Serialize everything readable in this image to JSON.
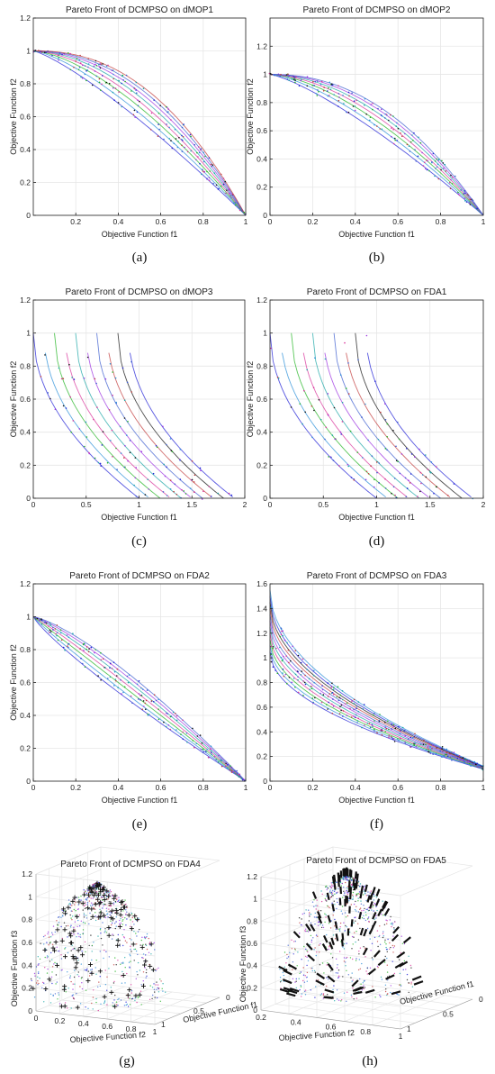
{
  "chart_data": [
    {
      "id": "a",
      "type": "scatter",
      "title": "Pareto Front of DCMPSO on dMOP1",
      "xlabel": "Objective Function f1",
      "ylabel": "Objective Function f2",
      "caption": "(a)",
      "xlim": [
        0,
        1
      ],
      "ylim": [
        0,
        1.2
      ],
      "xticks": [
        0.2,
        0.4,
        0.6,
        0.8,
        1
      ],
      "yticks": [
        0,
        0.2,
        0.4,
        0.6,
        0.8,
        1,
        1.2
      ],
      "x_tick_labels": [
        "0.2",
        "0.4",
        "0.6",
        "0.8",
        "1"
      ],
      "y_tick_labels": [
        "0",
        "0.2",
        "0.4",
        "0.6",
        "0.8",
        "1",
        "1.2"
      ],
      "front": "concave",
      "exponents": [
        1.25,
        1.4,
        1.55,
        1.7,
        1.85,
        2.0,
        2.15,
        2.3
      ],
      "grid": true,
      "legend": "none"
    },
    {
      "id": "b",
      "type": "scatter",
      "title": "Pareto Front of DCMPSO on dMOP2",
      "xlabel": "Objective Function f1",
      "ylabel": "Objective Function f2",
      "caption": "(b)",
      "xlim": [
        0,
        1
      ],
      "ylim": [
        0,
        1.4
      ],
      "xticks": [
        0,
        0.2,
        0.4,
        0.6,
        0.8,
        1
      ],
      "yticks": [
        0,
        0.2,
        0.4,
        0.6,
        0.8,
        1,
        1.2
      ],
      "x_tick_labels": [
        "0",
        "0.2",
        "0.4",
        "0.6",
        "0.8",
        "1"
      ],
      "y_tick_labels": [
        "0",
        "0.2",
        "0.4",
        "0.6",
        "0.8",
        "1",
        "1.2"
      ],
      "front": "concave",
      "exponents": [
        1.3,
        1.45,
        1.6,
        1.75,
        1.9,
        2.05,
        2.2
      ],
      "grid": true,
      "legend": "none"
    },
    {
      "id": "c",
      "type": "scatter",
      "title": "Pareto Front of DCMPSO on dMOP3",
      "xlabel": "Objective Function f1",
      "ylabel": "Objective Function f2",
      "caption": "(c)",
      "xlim": [
        0,
        2
      ],
      "ylim": [
        0,
        1.2
      ],
      "xticks": [
        0,
        0.5,
        1,
        1.5,
        2
      ],
      "yticks": [
        0,
        0.2,
        0.4,
        0.6,
        0.8,
        1,
        1.2
      ],
      "x_tick_labels": [
        "0",
        "0.5",
        "1",
        "1.5",
        "2"
      ],
      "y_tick_labels": [
        "0",
        "0.2",
        "0.4",
        "0.6",
        "0.8",
        "1",
        "1.2"
      ],
      "front": "shifted",
      "offsets": [
        0,
        0.1,
        0.2,
        0.3,
        0.4,
        0.5,
        0.6,
        0.7,
        0.8,
        0.9
      ],
      "grid": true,
      "legend": "none"
    },
    {
      "id": "d",
      "type": "scatter",
      "title": "Pareto Front of DCMPSO on FDA1",
      "xlabel": "Objective Function f1",
      "ylabel": "Objective Function f2",
      "caption": "(d)",
      "xlim": [
        0,
        2
      ],
      "ylim": [
        0,
        1.2
      ],
      "xticks": [
        0,
        0.5,
        1,
        1.5,
        2
      ],
      "yticks": [
        0,
        0.2,
        0.4,
        0.6,
        0.8,
        1,
        1.2
      ],
      "x_tick_labels": [
        "0",
        "0.5",
        "1",
        "1.5",
        "2"
      ],
      "y_tick_labels": [
        "0",
        "0.2",
        "0.4",
        "0.6",
        "0.8",
        "1",
        "1.2"
      ],
      "front": "shifted",
      "offsets": [
        0,
        0.1,
        0.2,
        0.3,
        0.4,
        0.5,
        0.6,
        0.7,
        0.8,
        0.9
      ],
      "grid": true,
      "legend": "none"
    },
    {
      "id": "e",
      "type": "scatter",
      "title": "Pareto Front of DCMPSO on FDA2",
      "xlabel": "Objective Function f1",
      "ylabel": "Objective Function f2",
      "caption": "(e)",
      "xlim": [
        0,
        1
      ],
      "ylim": [
        0,
        1.2
      ],
      "xticks": [
        0,
        0.2,
        0.4,
        0.6,
        0.8,
        1
      ],
      "yticks": [
        0,
        0.2,
        0.4,
        0.6,
        0.8,
        1,
        1.2
      ],
      "x_tick_labels": [
        "0",
        "0.2",
        "0.4",
        "0.6",
        "0.8",
        "1"
      ],
      "y_tick_labels": [
        "0",
        "0.2",
        "0.4",
        "0.6",
        "0.8",
        "1",
        "1.2"
      ],
      "front": "power",
      "exponents": [
        0.85,
        0.92,
        1.0,
        1.08,
        1.16,
        1.24,
        1.32
      ],
      "grid": true,
      "legend": "none"
    },
    {
      "id": "f",
      "type": "scatter",
      "title": "Pareto Front of DCMPSO on FDA3",
      "xlabel": "Objective Function f1",
      "ylabel": "",
      "caption": "(f)",
      "xlim": [
        0,
        1
      ],
      "ylim": [
        0,
        1.6
      ],
      "xticks": [
        0,
        0.2,
        0.4,
        0.6,
        0.8,
        1
      ],
      "yticks": [
        0,
        0.2,
        0.4,
        0.6,
        0.8,
        1,
        1.2,
        1.4,
        1.6
      ],
      "x_tick_labels": [
        "0",
        "0.2",
        "0.4",
        "0.6",
        "0.8",
        "1"
      ],
      "y_tick_labels": [
        "0",
        "0.2",
        "0.4",
        "0.6",
        "0.8",
        "1",
        "1.2",
        "1.4",
        "1.6"
      ],
      "front": "convex",
      "offsets": [
        1.0,
        1.05,
        1.1,
        1.15,
        1.2,
        1.25,
        1.3,
        1.35,
        1.4,
        1.45,
        1.5
      ],
      "grid": true,
      "legend": "none"
    },
    {
      "id": "g",
      "type": "scatter3d",
      "title": "Pareto Front of DCMPSO on FDA4",
      "xlabel": "Objective Function f2",
      "ylabel": "Objective Function f1",
      "zlabel": "Objective Function f3",
      "caption": "(g)",
      "zlim": [
        0,
        1.2
      ],
      "zticks": [
        "0",
        "0.2",
        "0.4",
        "0.6",
        "0.8",
        "1",
        "1.2"
      ],
      "xticks": [
        "0",
        "0.2",
        "0.4",
        "0.6",
        "0.8",
        "1"
      ],
      "yticks": [
        "0",
        "0.5",
        "1"
      ],
      "grid": true,
      "legend": "none"
    },
    {
      "id": "h",
      "type": "scatter3d",
      "title": "Pareto Front of DCMPSO on FDA5",
      "xlabel": "Objective Function f2",
      "ylabel": "Objective Function f1",
      "zlabel": "Objective Function f3",
      "caption": "(h)",
      "zlim": [
        0,
        1.2
      ],
      "zticks": [
        "0",
        "0.2",
        "0.4",
        "0.6",
        "0.8",
        "1",
        "1.2"
      ],
      "xticks": [
        "0.2",
        "0.4",
        "0.6",
        "0.8",
        "1"
      ],
      "yticks": [
        "0",
        "0.5",
        "1"
      ],
      "grid": true,
      "legend": "none"
    }
  ],
  "colors": {
    "series": [
      "#1f1fd6",
      "#2a8fd8",
      "#22b422",
      "#d8329a",
      "#1aa6a6",
      "#9b30e0",
      "#3b5ccf",
      "#c23b3b",
      "#111111"
    ],
    "axis": "#222222",
    "grid": "#e6e6e6"
  }
}
